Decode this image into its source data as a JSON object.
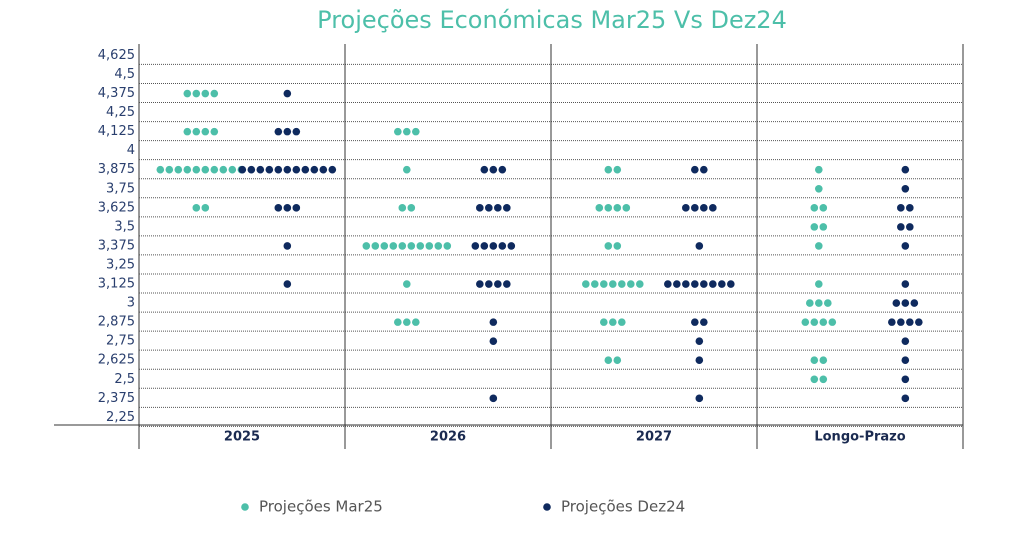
{
  "chart_data": {
    "type": "dot",
    "title": "Projeções Económicas Mar25 Vs Dez24",
    "categories": [
      "2025",
      "2026",
      "2027",
      "Longo-Prazo"
    ],
    "ylim": [
      2.2,
      4.7
    ],
    "yticks": [
      {
        "value": 4.625,
        "label": "4,625"
      },
      {
        "value": 4.5,
        "label": "4,5"
      },
      {
        "value": 4.375,
        "label": "4,375"
      },
      {
        "value": 4.25,
        "label": "4,25"
      },
      {
        "value": 4.125,
        "label": "4,125"
      },
      4,
      {
        "value": 3.875,
        "label": "3,875"
      },
      {
        "value": 3.75,
        "label": "3,75"
      },
      {
        "value": 3.625,
        "label": "3,625"
      },
      {
        "value": 3.5,
        "label": "3,5"
      },
      {
        "value": 3.375,
        "label": "3,375"
      },
      {
        "value": 3.25,
        "label": "3,25"
      },
      {
        "value": 3.125,
        "label": "3,125"
      },
      3,
      {
        "value": 2.875,
        "label": "2,875"
      },
      {
        "value": 2.75,
        "label": "2,75"
      },
      {
        "value": 2.625,
        "label": "2,625"
      },
      {
        "value": 2.5,
        "label": "2,5"
      },
      {
        "value": 2.375,
        "label": "2,375"
      },
      {
        "value": 2.25,
        "label": "2,25"
      }
    ],
    "grid": true,
    "legend": "bottom",
    "series": [
      {
        "name": "Projeções Mar25",
        "color": "#4dbfa9",
        "values": [
          [
            {
              "level": 4.375,
              "count": 4
            },
            {
              "level": 4.125,
              "count": 4
            },
            {
              "level": 3.875,
              "count": 10
            },
            {
              "level": 3.625,
              "count": 2
            }
          ],
          [
            {
              "level": 4.125,
              "count": 3
            },
            {
              "level": 3.875,
              "count": 1
            },
            {
              "level": 3.625,
              "count": 2
            },
            {
              "level": 3.375,
              "count": 10
            },
            {
              "level": 3.125,
              "count": 1
            },
            {
              "level": 2.875,
              "count": 3
            }
          ],
          [
            {
              "level": 3.875,
              "count": 2
            },
            {
              "level": 3.625,
              "count": 4
            },
            {
              "level": 3.375,
              "count": 2
            },
            {
              "level": 3.125,
              "count": 7
            },
            {
              "level": 2.875,
              "count": 3
            },
            {
              "level": 2.625,
              "count": 2
            }
          ],
          [
            {
              "level": 3.875,
              "count": 1
            },
            {
              "level": 3.75,
              "count": 1
            },
            {
              "level": 3.625,
              "count": 2
            },
            {
              "level": 3.5,
              "count": 2
            },
            {
              "level": 3.375,
              "count": 1
            },
            {
              "level": 3.125,
              "count": 1
            },
            {
              "level": 3,
              "count": 3
            },
            {
              "level": 2.875,
              "count": 4
            },
            {
              "level": 2.625,
              "count": 2
            },
            {
              "level": 2.5,
              "count": 2
            }
          ]
        ]
      },
      {
        "name": "Projeções Dez24",
        "color": "#0f2a5e",
        "values": [
          [
            {
              "level": 4.375,
              "count": 1
            },
            {
              "level": 4.125,
              "count": 3
            },
            {
              "level": 3.875,
              "count": 11
            },
            {
              "level": 3.625,
              "count": 3
            },
            {
              "level": 3.375,
              "count": 1
            },
            {
              "level": 3.125,
              "count": 1
            }
          ],
          [
            {
              "level": 3.875,
              "count": 3
            },
            {
              "level": 3.625,
              "count": 4
            },
            {
              "level": 3.375,
              "count": 5
            },
            {
              "level": 3.125,
              "count": 4
            },
            {
              "level": 2.875,
              "count": 1
            },
            {
              "level": 2.75,
              "count": 1
            },
            {
              "level": 2.375,
              "count": 1
            }
          ],
          [
            {
              "level": 3.875,
              "count": 2
            },
            {
              "level": 3.625,
              "count": 4
            },
            {
              "level": 3.375,
              "count": 1
            },
            {
              "level": 3.125,
              "count": 8
            },
            {
              "level": 2.875,
              "count": 2
            },
            {
              "level": 2.75,
              "count": 1
            },
            {
              "level": 2.625,
              "count": 1
            },
            {
              "level": 2.375,
              "count": 1
            }
          ],
          [
            {
              "level": 3.875,
              "count": 1
            },
            {
              "level": 3.75,
              "count": 1
            },
            {
              "level": 3.625,
              "count": 2
            },
            {
              "level": 3.5,
              "count": 2
            },
            {
              "level": 3.375,
              "count": 1
            },
            {
              "level": 3.125,
              "count": 1
            },
            {
              "level": 3,
              "count": 3
            },
            {
              "level": 2.875,
              "count": 4
            },
            {
              "level": 2.75,
              "count": 1
            },
            {
              "level": 2.625,
              "count": 1
            },
            {
              "level": 2.5,
              "count": 1
            },
            {
              "level": 2.375,
              "count": 1
            }
          ]
        ]
      }
    ]
  }
}
